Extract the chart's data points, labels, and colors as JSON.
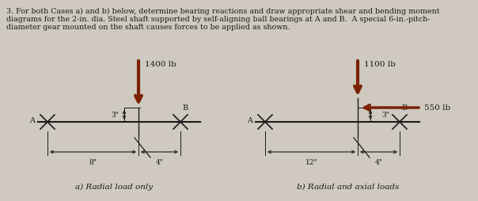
{
  "bg_color": "#cfc9bf",
  "text_color": "#1a1a1a",
  "title_line1": "3. For both Cases a) and b) below, determine bearing reactions and draw appropriate shear and bending moment",
  "title_line2": "diagrams for the 2-in. dia. Steel shaft supported by self-aligning ball bearings at A and B.  A special 6-in.-pitch-",
  "title_line3": "diameter gear mounted on the shaft causes forces to be applied as shown.",
  "label_a": "a) Radial load only",
  "label_b": "b) Radial and axial loads",
  "force1_label": "1400 lb",
  "force2_label": "1100 lb",
  "force3_label": "550 lb",
  "dim1a": "8\"",
  "dim2a": "4\"",
  "dim1b": "12\"",
  "dim2b": "4\"",
  "dim3a": "3\"",
  "dim3b": "3\"",
  "arrow_color": "#7B2000",
  "shaft_color": "#1a1a1a",
  "dim_color": "#1a1a1a"
}
